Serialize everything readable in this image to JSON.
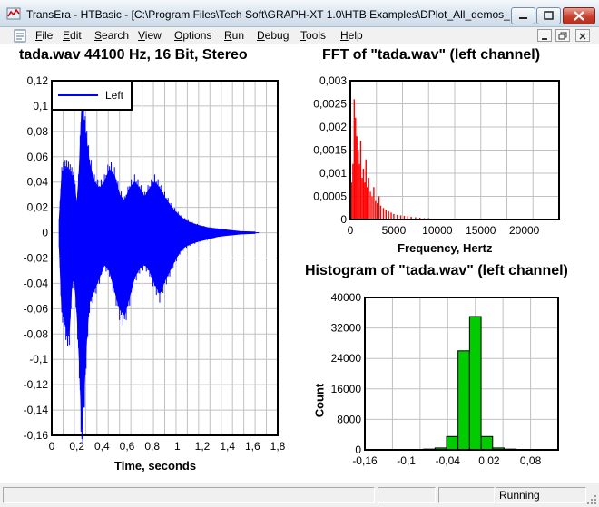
{
  "window": {
    "title": "TransEra - HTBasic - [C:\\Program Files\\Tech Soft\\GRAPH-XT 1.0\\HTB Examples\\DPlot_All_demos_..."
  },
  "menu": {
    "items": [
      {
        "key": "F",
        "rest": "ile"
      },
      {
        "key": "E",
        "rest": "dit"
      },
      {
        "key": "S",
        "rest": "earch"
      },
      {
        "key": "V",
        "rest": "iew"
      },
      {
        "key": "O",
        "rest": "ptions"
      },
      {
        "key": "R",
        "rest": "un"
      },
      {
        "key": "D",
        "rest": "ebug"
      },
      {
        "key": "T",
        "rest": "ools"
      },
      {
        "key": "H",
        "rest": "elp"
      }
    ]
  },
  "status": {
    "text": "Running"
  },
  "colors": {
    "waveform": "#0000ff",
    "fft": "#ff0000",
    "histogram": "#00cc00",
    "grid": "#c0c0c0"
  },
  "plots": {
    "waveform": {
      "title": "tada.wav 44100 Hz, 16 Bit, Stereo",
      "xlabel": "Time, seconds"
    },
    "fft": {
      "title": "FFT of \"tada.wav\" (left channel)",
      "xlabel": "Frequency, Hertz"
    },
    "histogram": {
      "title": "Histogram of \"tada.wav\" (left channel)",
      "ylabel": "Count"
    }
  },
  "chart_data": [
    {
      "type": "line",
      "title": "tada.wav 44100 Hz, 16 Bit, Stereo",
      "xlabel": "Time, seconds",
      "ylabel": "",
      "xlim": [
        0,
        1.8
      ],
      "ylim": [
        -0.16,
        0.12
      ],
      "xticks": [
        "0",
        "0,2",
        "0,4",
        "0,6",
        "0,8",
        "1",
        "1,2",
        "1,4",
        "1,6",
        "1,8"
      ],
      "yticks": [
        "0,12",
        "0,1",
        "0,08",
        "0,06",
        "0,04",
        "0,02",
        "0",
        "-0,02",
        "-0,04",
        "-0,06",
        "-0,08",
        "-0,1",
        "-0,12",
        "-0,14",
        "-0,16"
      ],
      "grid": true,
      "legend": "top-left",
      "series": [
        {
          "name": "Left",
          "envelope": [
            {
              "x": 0.06,
              "max": 0.01,
              "min": -0.01
            },
            {
              "x": 0.08,
              "max": 0.045,
              "min": -0.06
            },
            {
              "x": 0.1,
              "max": 0.05,
              "min": -0.065
            },
            {
              "x": 0.12,
              "max": 0.05,
              "min": -0.078
            },
            {
              "x": 0.14,
              "max": 0.048,
              "min": -0.077
            },
            {
              "x": 0.16,
              "max": 0.045,
              "min": -0.04
            },
            {
              "x": 0.18,
              "max": 0.04,
              "min": -0.035
            },
            {
              "x": 0.2,
              "max": 0.02,
              "min": -0.06
            },
            {
              "x": 0.22,
              "max": 0.05,
              "min": -0.1
            },
            {
              "x": 0.24,
              "max": 0.1,
              "min": -0.155
            },
            {
              "x": 0.26,
              "max": 0.085,
              "min": -0.12
            },
            {
              "x": 0.28,
              "max": 0.07,
              "min": -0.08
            },
            {
              "x": 0.3,
              "max": 0.055,
              "min": -0.055
            },
            {
              "x": 0.34,
              "max": 0.04,
              "min": -0.045
            },
            {
              "x": 0.38,
              "max": 0.035,
              "min": -0.035
            },
            {
              "x": 0.42,
              "max": 0.04,
              "min": -0.025
            },
            {
              "x": 0.46,
              "max": 0.05,
              "min": -0.03
            },
            {
              "x": 0.5,
              "max": 0.045,
              "min": -0.045
            },
            {
              "x": 0.54,
              "max": 0.03,
              "min": -0.06
            },
            {
              "x": 0.58,
              "max": 0.025,
              "min": -0.065
            },
            {
              "x": 0.62,
              "max": 0.035,
              "min": -0.05
            },
            {
              "x": 0.66,
              "max": 0.04,
              "min": -0.035
            },
            {
              "x": 0.7,
              "max": 0.035,
              "min": -0.028
            },
            {
              "x": 0.74,
              "max": 0.028,
              "min": -0.025
            },
            {
              "x": 0.78,
              "max": 0.035,
              "min": -0.03
            },
            {
              "x": 0.82,
              "max": 0.04,
              "min": -0.04
            },
            {
              "x": 0.86,
              "max": 0.035,
              "min": -0.048
            },
            {
              "x": 0.9,
              "max": 0.028,
              "min": -0.038
            },
            {
              "x": 0.94,
              "max": 0.022,
              "min": -0.03
            },
            {
              "x": 0.98,
              "max": 0.017,
              "min": -0.022
            },
            {
              "x": 1.02,
              "max": 0.013,
              "min": -0.015
            },
            {
              "x": 1.06,
              "max": 0.01,
              "min": -0.011
            },
            {
              "x": 1.1,
              "max": 0.008,
              "min": -0.009
            },
            {
              "x": 1.16,
              "max": 0.006,
              "min": -0.007
            },
            {
              "x": 1.24,
              "max": 0.004,
              "min": -0.005
            },
            {
              "x": 1.32,
              "max": 0.003,
              "min": -0.003
            },
            {
              "x": 1.4,
              "max": 0.002,
              "min": -0.002
            },
            {
              "x": 1.5,
              "max": 0.001,
              "min": -0.001
            },
            {
              "x": 1.62,
              "max": 0.0005,
              "min": -0.0005
            }
          ]
        }
      ]
    },
    {
      "type": "bar",
      "title": "FFT of \"tada.wav\" (left channel)",
      "xlabel": "Frequency, Hertz",
      "ylabel": "",
      "xlim": [
        0,
        24000
      ],
      "ylim": [
        0,
        0.003
      ],
      "xticks": [
        "0",
        "5000",
        "10000",
        "15000",
        "20000"
      ],
      "yticks": [
        "0,003",
        "0,0025",
        "0,002",
        "0,0015",
        "0,001",
        "0,0005",
        "0"
      ],
      "grid": true,
      "x": [
        150,
        300,
        450,
        600,
        750,
        900,
        1050,
        1200,
        1350,
        1500,
        1650,
        1800,
        1950,
        2100,
        2300,
        2500,
        2700,
        2900,
        3100,
        3300,
        3500,
        3800,
        4100,
        4400,
        4700,
        5000,
        5400,
        5800,
        6200,
        6600,
        7000,
        7500,
        8000,
        8500,
        9000,
        9500,
        10000
      ],
      "values": [
        0.0008,
        0.0012,
        0.0026,
        0.0022,
        0.0018,
        0.0015,
        0.0012,
        0.0017,
        0.0009,
        0.0011,
        0.0008,
        0.0013,
        0.0007,
        0.0009,
        0.0006,
        0.0005,
        0.0007,
        0.0004,
        0.00035,
        0.0005,
        0.0003,
        0.00025,
        0.0002,
        0.00018,
        0.00015,
        0.00012,
        0.0001,
        9e-05,
        8e-05,
        7e-05,
        6e-05,
        5e-05,
        4e-05,
        3e-05,
        3e-05,
        2e-05,
        2e-05
      ]
    },
    {
      "type": "bar",
      "title": "Histogram of \"tada.wav\" (left channel)",
      "xlabel": "",
      "ylabel": "Count",
      "xlim": [
        -0.16,
        0.12
      ],
      "ylim": [
        0,
        40000
      ],
      "xticks": [
        "-0,16",
        "-0,1",
        "-0,04",
        "0,02",
        "0,08"
      ],
      "yticks": [
        "40000",
        "32000",
        "24000",
        "16000",
        "8000",
        "0"
      ],
      "grid": true,
      "bin_width": 0.0167,
      "x": [
        -0.0833,
        -0.0667,
        -0.05,
        -0.0333,
        -0.0167,
        0.0,
        0.0167,
        0.0333,
        0.05,
        0.0667
      ],
      "values": [
        100,
        200,
        500,
        3500,
        26000,
        35000,
        3500,
        500,
        200,
        100
      ]
    }
  ]
}
